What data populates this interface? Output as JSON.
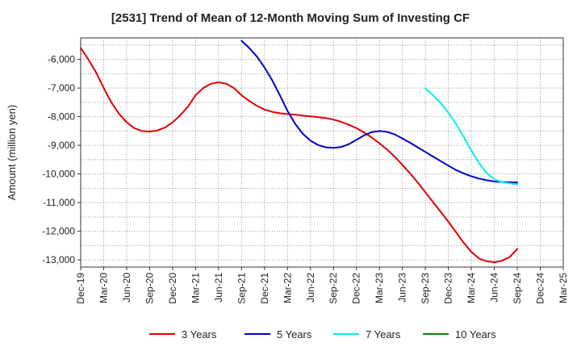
{
  "chart_data": {
    "type": "line",
    "title": "[2531]  Trend of Mean of 12-Month Moving Sum of Investing CF",
    "xlabel": "",
    "ylabel": "Amount (million yen)",
    "ylim": [
      -13250,
      -5250
    ],
    "yticks": [
      -6000,
      -7000,
      -8000,
      -9000,
      -10000,
      -11000,
      -12000,
      -13000
    ],
    "ytick_labels": [
      "-6,000",
      "-7,000",
      "-8,000",
      "-9,000",
      "-10,000",
      "-11,000",
      "-12,000",
      "-13,000"
    ],
    "xlim": [
      0,
      63
    ],
    "xticks": [
      0,
      3,
      6,
      9,
      12,
      15,
      18,
      21,
      24,
      27,
      30,
      33,
      36,
      39,
      42,
      45,
      48,
      51,
      54,
      57,
      60,
      63
    ],
    "xtick_labels": [
      "Dec-19",
      "Mar-20",
      "Jun-20",
      "Sep-20",
      "Dec-20",
      "Mar-21",
      "Jun-21",
      "Sep-21",
      "Dec-21",
      "Mar-22",
      "Jun-22",
      "Sep-22",
      "Dec-22",
      "Mar-23",
      "Jun-23",
      "Sep-23",
      "Dec-23",
      "Mar-24",
      "Jun-24",
      "Sep-24",
      "Dec-24",
      "Mar-25"
    ],
    "grid": true,
    "legend_position": "bottom",
    "series": [
      {
        "name": "3 Years",
        "color": "#dd0000",
        "x": [
          0,
          1,
          2,
          3,
          4,
          5,
          6,
          7,
          8,
          9,
          10,
          11,
          12,
          13,
          14,
          15,
          16,
          17,
          18,
          19,
          20,
          21,
          22,
          23,
          24,
          25,
          26,
          27,
          28,
          29,
          30,
          31,
          32,
          33,
          34,
          35,
          36,
          37,
          38,
          39,
          40,
          41,
          42,
          43,
          44,
          45,
          46,
          47,
          48,
          49,
          50,
          51,
          52,
          53,
          54,
          55,
          56,
          57
        ],
        "values": [
          -5600,
          -6000,
          -6450,
          -7000,
          -7500,
          -7900,
          -8200,
          -8400,
          -8500,
          -8520,
          -8480,
          -8380,
          -8200,
          -7950,
          -7650,
          -7250,
          -7000,
          -6850,
          -6800,
          -6850,
          -7000,
          -7250,
          -7450,
          -7620,
          -7750,
          -7830,
          -7880,
          -7910,
          -7930,
          -7960,
          -7990,
          -8020,
          -8050,
          -8100,
          -8180,
          -8280,
          -8400,
          -8550,
          -8730,
          -8930,
          -9150,
          -9400,
          -9680,
          -9980,
          -10300,
          -10640,
          -10980,
          -11320,
          -11670,
          -12030,
          -12400,
          -12720,
          -12950,
          -13050,
          -13080,
          -13030,
          -12900,
          -12620
        ]
      },
      {
        "name": "5 Years",
        "color": "#0000cc",
        "x": [
          21,
          22,
          23,
          24,
          25,
          26,
          27,
          28,
          29,
          30,
          31,
          32,
          33,
          34,
          35,
          36,
          37,
          38,
          39,
          40,
          41,
          42,
          43,
          44,
          45,
          46,
          47,
          48,
          49,
          50,
          51,
          52,
          53,
          54,
          55,
          56,
          57
        ],
        "values": [
          -5350,
          -5600,
          -5900,
          -6280,
          -6730,
          -7250,
          -7800,
          -8250,
          -8600,
          -8840,
          -8990,
          -9070,
          -9090,
          -9060,
          -8960,
          -8810,
          -8650,
          -8540,
          -8500,
          -8530,
          -8620,
          -8760,
          -8910,
          -9070,
          -9230,
          -9390,
          -9550,
          -9710,
          -9860,
          -9980,
          -10080,
          -10160,
          -10220,
          -10260,
          -10280,
          -10290,
          -10300
        ]
      },
      {
        "name": "7 Years",
        "color": "#00eeee",
        "x": [
          45,
          46,
          47,
          48,
          49,
          50,
          51,
          52,
          53,
          54,
          55,
          56,
          57
        ],
        "values": [
          -7020,
          -7250,
          -7520,
          -7860,
          -8250,
          -8700,
          -9180,
          -9620,
          -9970,
          -10180,
          -10290,
          -10330,
          -10360
        ]
      },
      {
        "name": "10 Years",
        "color": "#008800",
        "x": [],
        "values": []
      }
    ]
  }
}
